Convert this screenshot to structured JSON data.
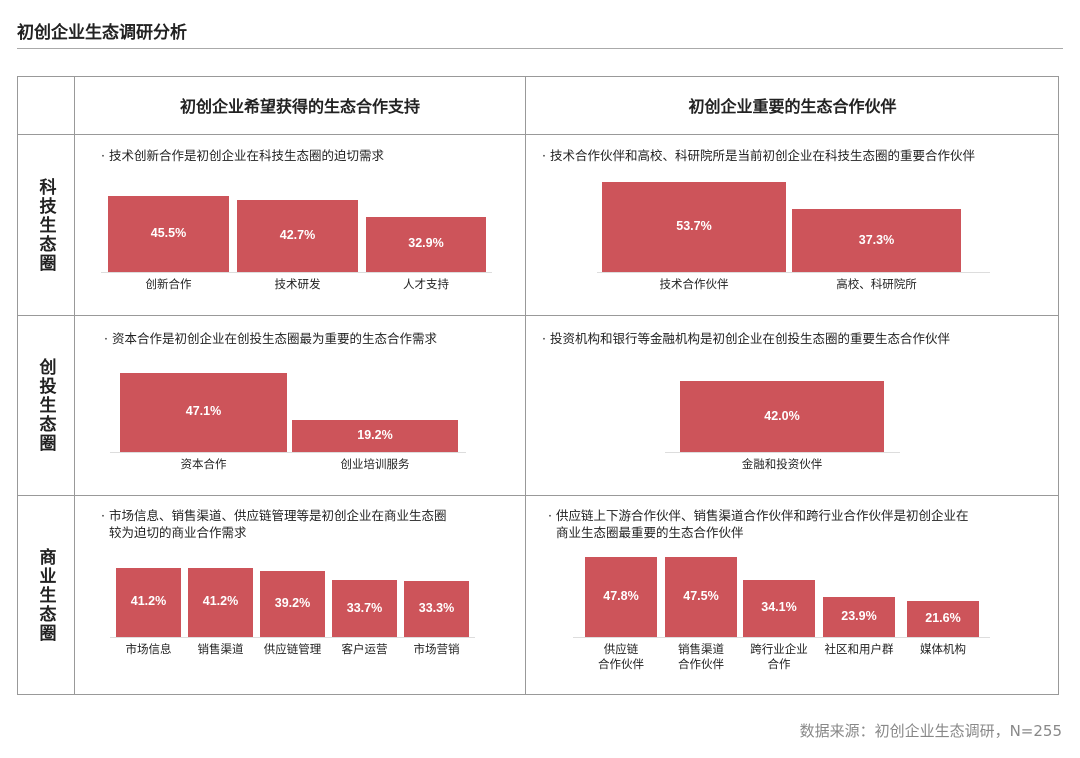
{
  "title": "初创企业生态调研分析",
  "columns": [
    "初创企业希望获得的生态合作支持",
    "初创企业重要的生态合作伙伴"
  ],
  "rows": [
    "科技生态圈",
    "创投生态圈",
    "商业生态圈"
  ],
  "source": "数据来源：初创企业生态调研，N=255",
  "bar_color": "#cd545a",
  "chart_data": [
    {
      "type": "bar",
      "note": "· 技术创新合作是初创企业在科技生态圈的迫切需求",
      "categories": [
        "创新合作",
        "技术研发",
        "人才支持"
      ],
      "values": [
        45.5,
        42.7,
        32.9
      ],
      "labels": [
        "45.5%",
        "42.7%",
        "32.9%"
      ]
    },
    {
      "type": "bar",
      "note": "· 技术合作伙伴和高校、科研院所是当前初创企业在科技生态圈的重要合作伙伴",
      "categories": [
        "技术合作伙伴",
        "高校、科研院所"
      ],
      "values": [
        53.7,
        37.3
      ],
      "labels": [
        "53.7%",
        "37.3%"
      ]
    },
    {
      "type": "bar",
      "note": "· 资本合作是初创企业在创投生态圈最为重要的生态合作需求",
      "categories": [
        "资本合作",
        "创业培训服务"
      ],
      "values": [
        47.1,
        19.2
      ],
      "labels": [
        "47.1%",
        "19.2%"
      ]
    },
    {
      "type": "bar",
      "note": "· 投资机构和银行等金融机构是初创企业在创投生态圈的重要生态合作伙伴",
      "categories": [
        "金融和投资伙伴"
      ],
      "values": [
        42.0
      ],
      "labels": [
        "42.0%"
      ]
    },
    {
      "type": "bar",
      "note": "· 市场信息、销售渠道、供应链管理等是初创企业在商业生态圈\n  较为迫切的商业合作需求",
      "categories": [
        "市场信息",
        "销售渠道",
        "供应链管理",
        "客户运营",
        "市场营销"
      ],
      "values": [
        41.2,
        41.2,
        39.2,
        33.7,
        33.3
      ],
      "labels": [
        "41.2%",
        "41.2%",
        "39.2%",
        "33.7%",
        "33.3%"
      ]
    },
    {
      "type": "bar",
      "note": "· 供应链上下游合作伙伴、销售渠道合作伙伴和跨行业合作伙伴是初创企业在\n  商业生态圈最重要的生态合作伙伴",
      "categories": [
        "供应链\n合作伙伴",
        "销售渠道\n合作伙伴",
        "跨行业企业\n合作",
        "社区和用户群",
        "媒体机构"
      ],
      "values": [
        47.8,
        47.5,
        34.1,
        23.9,
        21.6
      ],
      "labels": [
        "47.8%",
        "47.5%",
        "34.1%",
        "23.9%",
        "21.6%"
      ]
    }
  ]
}
